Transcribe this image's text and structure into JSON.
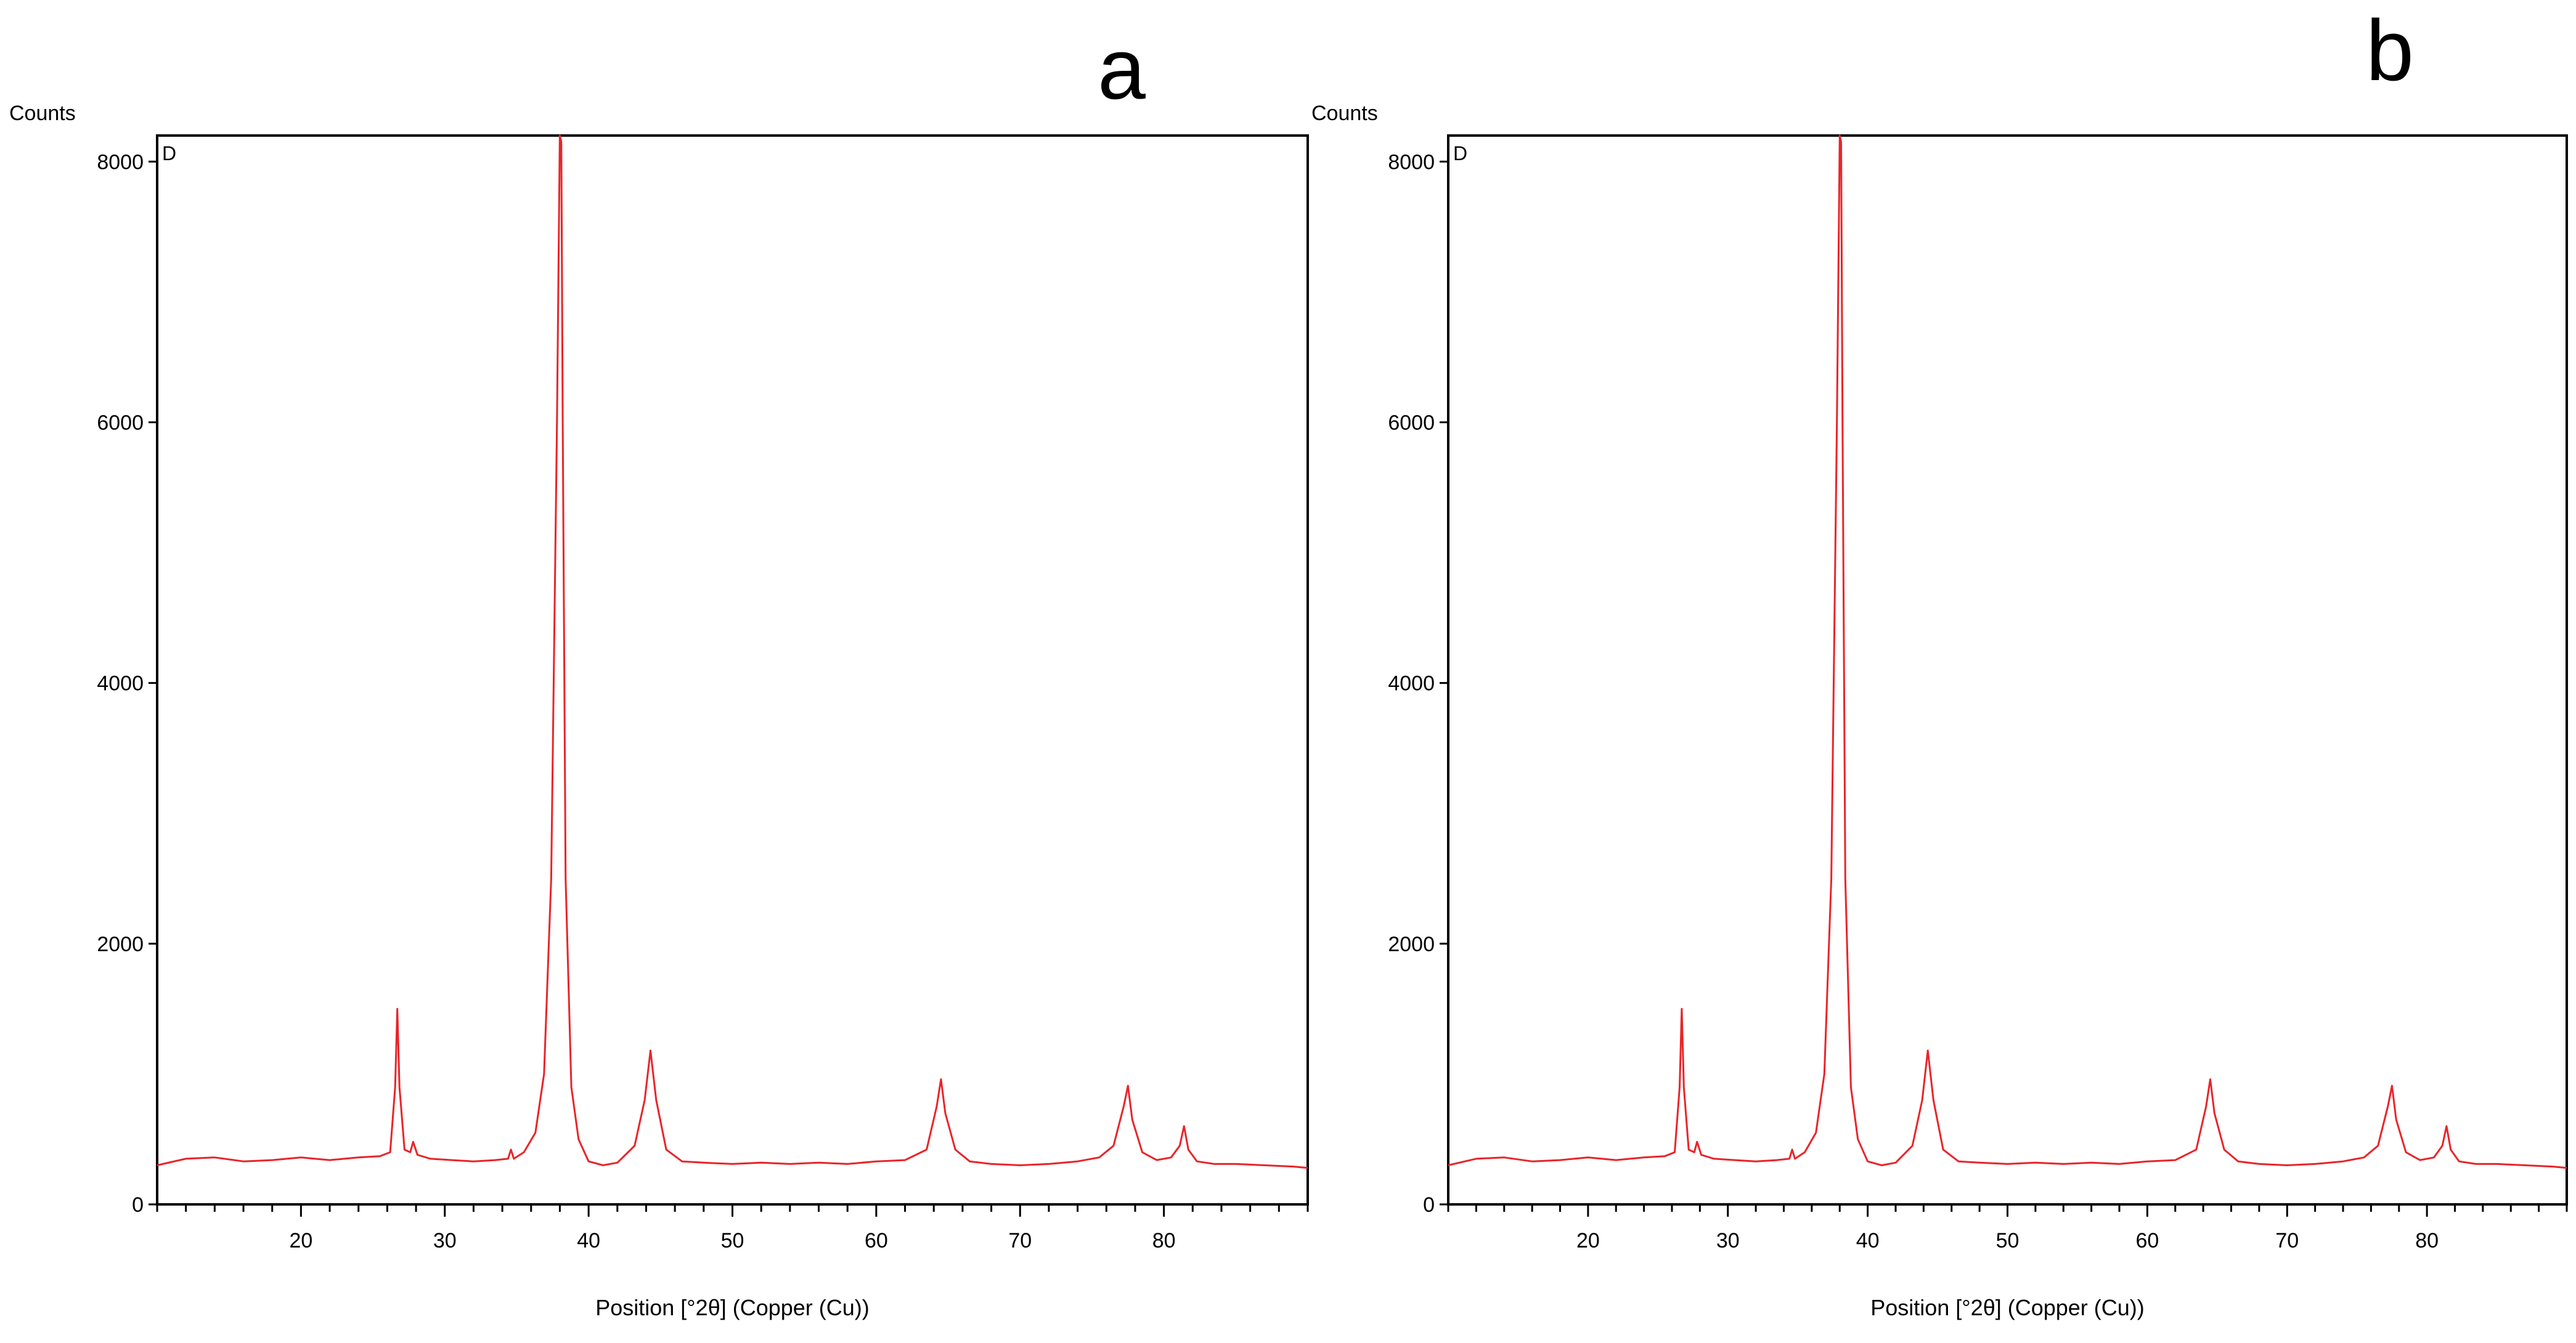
{
  "colors": {
    "series": "#e8252a",
    "axis": "#000000",
    "background": "#ffffff"
  },
  "chart_data": [
    {
      "panel_label": "a",
      "type": "line",
      "plot_tag": "D",
      "ylabel": "Counts",
      "xlabel": "Position [°2θ] (Copper (Cu))",
      "xlim": [
        10,
        90
      ],
      "ylim": [
        0,
        8200
      ],
      "x_ticks": [
        20,
        30,
        40,
        50,
        60,
        70,
        80
      ],
      "y_ticks": [
        0,
        2000,
        4000,
        6000,
        8000
      ],
      "grid": false,
      "series": [
        {
          "x": [
            10,
            12,
            14,
            16,
            18,
            20,
            22,
            24,
            25.5,
            26.2,
            26.55,
            26.7,
            26.85,
            27.2,
            27.6,
            27.8,
            28.1,
            29,
            30.5,
            32,
            33.5,
            34.4,
            34.6,
            34.8,
            35.5,
            36.3,
            36.9,
            37.4,
            37.8,
            38.0,
            38.1,
            38.2,
            38.4,
            38.8,
            39.3,
            40,
            41,
            42,
            43.2,
            43.9,
            44.3,
            44.7,
            45.4,
            46.5,
            48,
            50,
            52,
            54,
            56,
            58,
            60,
            62,
            63.5,
            64.2,
            64.5,
            64.8,
            65.5,
            66.5,
            68,
            70,
            72,
            74,
            75.5,
            76.5,
            77.2,
            77.5,
            77.8,
            78.5,
            79.5,
            80.5,
            81.1,
            81.4,
            81.7,
            82.3,
            83.5,
            85,
            87,
            89,
            90
          ],
          "y": [
            300,
            350,
            360,
            330,
            340,
            360,
            340,
            360,
            370,
            400,
            900,
            1500,
            900,
            420,
            400,
            480,
            380,
            350,
            340,
            330,
            340,
            350,
            420,
            350,
            400,
            550,
            1000,
            2500,
            6000,
            8200,
            8150,
            6000,
            2500,
            900,
            500,
            330,
            300,
            320,
            450,
            800,
            1180,
            800,
            420,
            330,
            320,
            310,
            320,
            310,
            320,
            310,
            330,
            340,
            420,
            750,
            960,
            700,
            420,
            330,
            310,
            300,
            310,
            330,
            360,
            450,
            750,
            910,
            650,
            400,
            340,
            360,
            450,
            600,
            420,
            330,
            310,
            310,
            300,
            290,
            280
          ]
        }
      ]
    },
    {
      "panel_label": "b",
      "type": "line",
      "plot_tag": "D",
      "ylabel": "Counts",
      "xlabel": "Position [°2θ] (Copper (Cu))",
      "xlim": [
        10,
        90
      ],
      "ylim": [
        0,
        8200
      ],
      "x_ticks": [
        20,
        30,
        40,
        50,
        60,
        70,
        80
      ],
      "y_ticks": [
        0,
        2000,
        4000,
        6000,
        8000
      ],
      "grid": false,
      "series": [
        {
          "x": [
            10,
            12,
            14,
            16,
            18,
            20,
            22,
            24,
            25.5,
            26.2,
            26.55,
            26.7,
            26.85,
            27.2,
            27.6,
            27.8,
            28.1,
            29,
            30.5,
            32,
            33.5,
            34.4,
            34.6,
            34.8,
            35.5,
            36.3,
            36.9,
            37.4,
            37.8,
            38.0,
            38.1,
            38.2,
            38.4,
            38.8,
            39.3,
            40,
            41,
            42,
            43.2,
            43.9,
            44.3,
            44.7,
            45.4,
            46.5,
            48,
            50,
            52,
            54,
            56,
            58,
            60,
            62,
            63.5,
            64.2,
            64.5,
            64.8,
            65.5,
            66.5,
            68,
            70,
            72,
            74,
            75.5,
            76.5,
            77.2,
            77.5,
            77.8,
            78.5,
            79.5,
            80.5,
            81.1,
            81.4,
            81.7,
            82.3,
            83.5,
            85,
            87,
            89,
            90
          ],
          "y": [
            300,
            350,
            360,
            330,
            340,
            360,
            340,
            360,
            370,
            400,
            900,
            1500,
            900,
            420,
            400,
            480,
            380,
            350,
            340,
            330,
            340,
            350,
            420,
            350,
            400,
            550,
            1000,
            2500,
            6000,
            8200,
            8150,
            6000,
            2500,
            900,
            500,
            330,
            300,
            320,
            450,
            800,
            1180,
            800,
            420,
            330,
            320,
            310,
            320,
            310,
            320,
            310,
            330,
            340,
            420,
            750,
            960,
            700,
            420,
            330,
            310,
            300,
            310,
            330,
            360,
            450,
            750,
            910,
            650,
            400,
            340,
            360,
            450,
            600,
            420,
            330,
            310,
            310,
            300,
            290,
            280
          ]
        }
      ]
    }
  ]
}
